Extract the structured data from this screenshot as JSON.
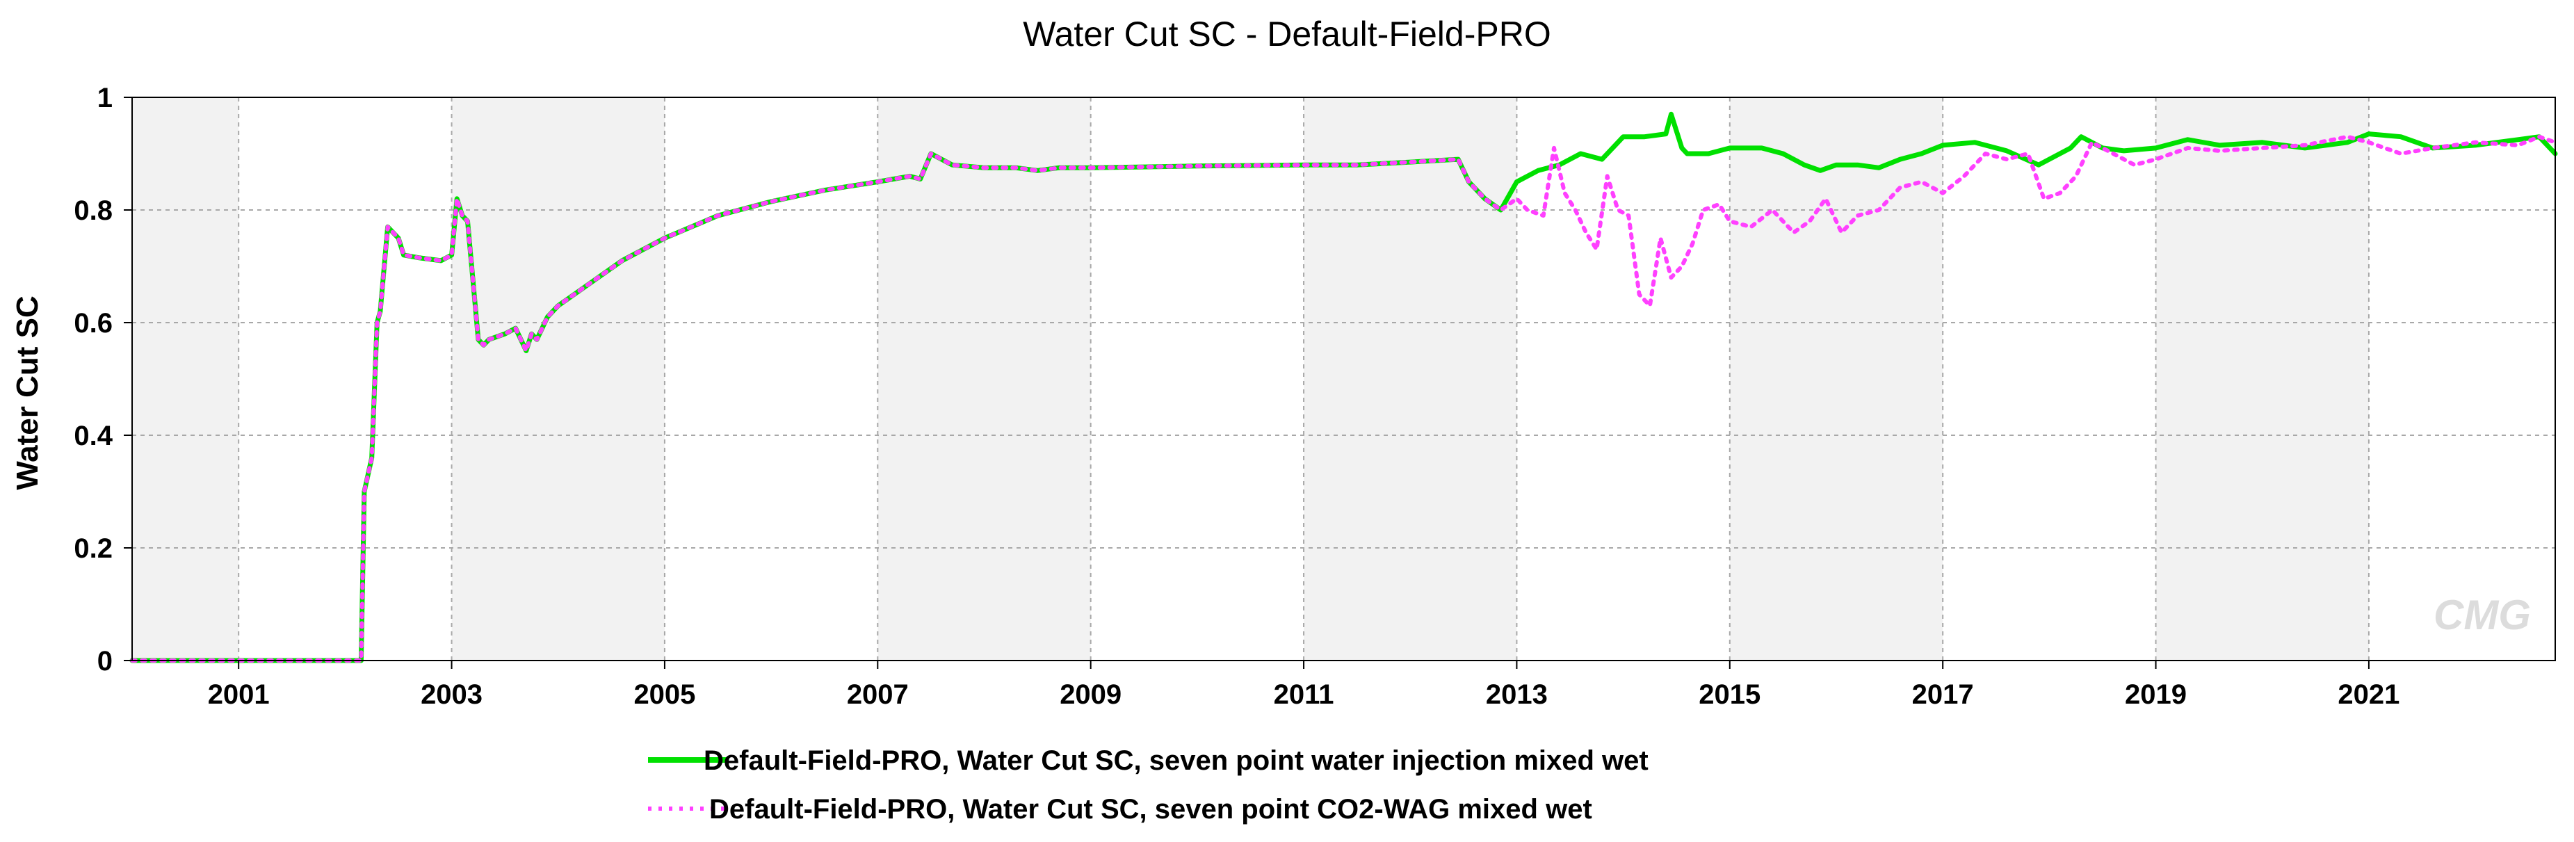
{
  "chart_data": {
    "type": "line",
    "title": "Water Cut SC - Default-Field-PRO",
    "ylabel": "Water Cut SC",
    "xlabel": "",
    "xlim": [
      2000.0,
      2022.75
    ],
    "ylim": [
      0,
      1
    ],
    "x_ticks": [
      2001,
      2003,
      2005,
      2007,
      2009,
      2011,
      2013,
      2015,
      2017,
      2019,
      2021
    ],
    "y_ticks": [
      0,
      0.2,
      0.4,
      0.6,
      0.8,
      1
    ],
    "y_tick_labels": [
      "0",
      "0.2",
      "0.4",
      "0.6",
      "0.8",
      "1"
    ],
    "grid": true,
    "legend_position": "bottom",
    "watermark": "CMG",
    "series": [
      {
        "name": "Default-Field-PRO, Water Cut SC, seven point water injection mixed wet",
        "color": "#00e000",
        "style": "solid",
        "x": [
          2000.0,
          2002.15,
          2002.18,
          2002.25,
          2002.3,
          2002.33,
          2002.4,
          2002.5,
          2002.55,
          2002.7,
          2002.9,
          2003.0,
          2003.05,
          2003.1,
          2003.15,
          2003.25,
          2003.3,
          2003.35,
          2003.5,
          2003.6,
          2003.7,
          2003.75,
          2003.8,
          2003.9,
          2004.0,
          2004.3,
          2004.6,
          2005.0,
          2005.5,
          2006.0,
          2006.5,
          2007.0,
          2007.3,
          2007.4,
          2007.5,
          2007.7,
          2008.0,
          2008.3,
          2008.5,
          2008.7,
          2009.0,
          2010.0,
          2011.0,
          2011.5,
          2012.0,
          2012.45,
          2012.55,
          2012.7,
          2012.85,
          2013.0,
          2013.2,
          2013.4,
          2013.6,
          2013.8,
          2014.0,
          2014.2,
          2014.4,
          2014.45,
          2014.55,
          2014.6,
          2014.8,
          2015.0,
          2015.3,
          2015.5,
          2015.7,
          2015.85,
          2016.0,
          2016.2,
          2016.4,
          2016.6,
          2016.8,
          2017.0,
          2017.3,
          2017.6,
          2017.9,
          2018.2,
          2018.3,
          2018.5,
          2018.7,
          2019.0,
          2019.3,
          2019.6,
          2020.0,
          2020.4,
          2020.8,
          2021.0,
          2021.3,
          2021.6,
          2022.0,
          2022.4,
          2022.6,
          2022.75
        ],
        "y": [
          0.0,
          0.0,
          0.3,
          0.36,
          0.6,
          0.62,
          0.77,
          0.75,
          0.72,
          0.715,
          0.71,
          0.72,
          0.82,
          0.79,
          0.78,
          0.57,
          0.56,
          0.57,
          0.58,
          0.59,
          0.55,
          0.58,
          0.57,
          0.61,
          0.63,
          0.67,
          0.71,
          0.75,
          0.79,
          0.815,
          0.835,
          0.85,
          0.86,
          0.855,
          0.9,
          0.88,
          0.875,
          0.875,
          0.87,
          0.875,
          0.875,
          0.878,
          0.88,
          0.88,
          0.885,
          0.89,
          0.85,
          0.82,
          0.8,
          0.85,
          0.87,
          0.88,
          0.9,
          0.89,
          0.93,
          0.93,
          0.935,
          0.97,
          0.91,
          0.9,
          0.9,
          0.91,
          0.91,
          0.9,
          0.88,
          0.87,
          0.88,
          0.88,
          0.875,
          0.89,
          0.9,
          0.915,
          0.92,
          0.905,
          0.88,
          0.91,
          0.93,
          0.91,
          0.905,
          0.91,
          0.925,
          0.915,
          0.92,
          0.91,
          0.92,
          0.935,
          0.93,
          0.91,
          0.915,
          0.925,
          0.93,
          0.9
        ]
      },
      {
        "name": "Default-Field-PRO, Water Cut SC, seven point CO2-WAG mixed wet",
        "color": "#ff40ff",
        "style": "dotted",
        "x": [
          2000.0,
          2002.15,
          2002.18,
          2002.25,
          2002.3,
          2002.33,
          2002.4,
          2002.5,
          2002.55,
          2002.7,
          2002.9,
          2003.0,
          2003.05,
          2003.1,
          2003.15,
          2003.25,
          2003.3,
          2003.35,
          2003.5,
          2003.6,
          2003.7,
          2003.75,
          2003.8,
          2003.9,
          2004.0,
          2004.3,
          2004.6,
          2005.0,
          2005.5,
          2006.0,
          2006.5,
          2007.0,
          2007.3,
          2007.4,
          2007.5,
          2007.7,
          2008.0,
          2008.3,
          2008.5,
          2008.7,
          2009.0,
          2010.0,
          2011.0,
          2011.5,
          2012.0,
          2012.45,
          2012.55,
          2012.7,
          2012.85,
          2013.0,
          2013.1,
          2013.25,
          2013.35,
          2013.45,
          2013.55,
          2013.65,
          2013.75,
          2013.85,
          2013.95,
          2014.05,
          2014.15,
          2014.25,
          2014.35,
          2014.45,
          2014.55,
          2014.65,
          2014.75,
          2014.9,
          2015.0,
          2015.2,
          2015.4,
          2015.6,
          2015.75,
          2015.9,
          2016.05,
          2016.2,
          2016.4,
          2016.6,
          2016.8,
          2017.0,
          2017.2,
          2017.4,
          2017.6,
          2017.8,
          2017.95,
          2018.1,
          2018.25,
          2018.4,
          2018.6,
          2018.8,
          2019.0,
          2019.3,
          2019.6,
          2020.0,
          2020.4,
          2020.8,
          2021.0,
          2021.3,
          2021.6,
          2022.0,
          2022.4,
          2022.6,
          2022.75
        ],
        "y": [
          0.0,
          0.0,
          0.3,
          0.36,
          0.6,
          0.62,
          0.77,
          0.75,
          0.72,
          0.715,
          0.71,
          0.72,
          0.82,
          0.79,
          0.78,
          0.57,
          0.56,
          0.57,
          0.58,
          0.59,
          0.55,
          0.58,
          0.57,
          0.61,
          0.63,
          0.67,
          0.71,
          0.75,
          0.79,
          0.815,
          0.835,
          0.85,
          0.86,
          0.855,
          0.9,
          0.88,
          0.875,
          0.875,
          0.87,
          0.875,
          0.875,
          0.878,
          0.88,
          0.88,
          0.885,
          0.89,
          0.85,
          0.82,
          0.8,
          0.82,
          0.8,
          0.79,
          0.91,
          0.83,
          0.8,
          0.76,
          0.73,
          0.86,
          0.8,
          0.79,
          0.65,
          0.63,
          0.75,
          0.68,
          0.7,
          0.74,
          0.8,
          0.81,
          0.78,
          0.77,
          0.8,
          0.76,
          0.78,
          0.82,
          0.76,
          0.79,
          0.8,
          0.84,
          0.85,
          0.83,
          0.86,
          0.9,
          0.89,
          0.9,
          0.82,
          0.83,
          0.86,
          0.92,
          0.9,
          0.88,
          0.89,
          0.91,
          0.905,
          0.91,
          0.915,
          0.93,
          0.92,
          0.9,
          0.91,
          0.92,
          0.915,
          0.93,
          0.92
        ]
      }
    ]
  }
}
